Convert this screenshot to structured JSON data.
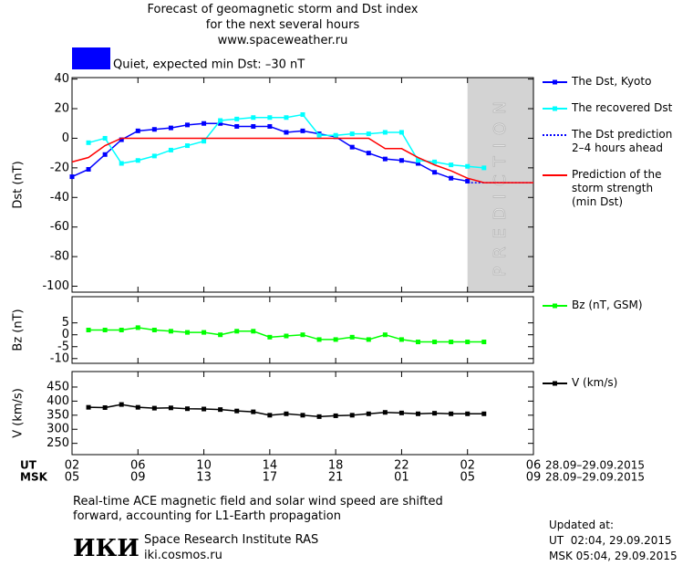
{
  "title": "Forecast of geomagnetic storm and Dst index",
  "subtitle": "for the next several hours",
  "url": "www.spaceweather.ru",
  "chart_data": [
    {
      "type": "line",
      "annotation": "Quiet, expected min Dst: –30 nT",
      "ylabel": "Dst (nT)",
      "xlim": [
        0,
        28
      ],
      "ylim": [
        -104,
        41
      ],
      "yticks": [
        40,
        20,
        0,
        -20,
        -40,
        -60,
        -80,
        -100
      ],
      "shade_x": [
        24,
        28
      ],
      "shade_label": "PREDICTION",
      "series": [
        {
          "name": "The Dst, Kyoto",
          "color": "#0000ff",
          "marker": true,
          "dash": "solid",
          "x": [
            0,
            1,
            2,
            3,
            4,
            5,
            6,
            7,
            8,
            9,
            10,
            11,
            12,
            13,
            14,
            15,
            16,
            17,
            18,
            19,
            20,
            21,
            22,
            23,
            24
          ],
          "values": [
            -26,
            -21,
            -11,
            -1,
            5,
            6,
            7,
            9,
            10,
            10,
            8,
            8,
            8,
            4,
            5,
            3,
            1,
            -6,
            -10,
            -14,
            -15,
            -17,
            -23,
            -27,
            -29
          ]
        },
        {
          "name": "The recovered Dst",
          "color": "#00ffff",
          "marker": true,
          "dash": "solid",
          "x": [
            1,
            2,
            3,
            4,
            5,
            6,
            7,
            8,
            9,
            10,
            11,
            12,
            13,
            14,
            15,
            16,
            17,
            18,
            19,
            20,
            21,
            22,
            23,
            24,
            25
          ],
          "values": [
            -3,
            0,
            -17,
            -15,
            -12,
            -8,
            -5,
            -2,
            12,
            13,
            14,
            14,
            14,
            16,
            2,
            2,
            3,
            3,
            4,
            4,
            -15,
            -16,
            -18,
            -19,
            -20
          ]
        },
        {
          "name": "The Dst prediction\n2–4 hours ahead",
          "color": "#0000ff",
          "marker": false,
          "dash": "dotted",
          "x": [
            24,
            28
          ],
          "values": [
            -30,
            -30
          ]
        },
        {
          "name": "Prediction of the\nstorm strength\n(min Dst)",
          "color": "#ff0000",
          "marker": false,
          "dash": "solid",
          "x": [
            0,
            1,
            2,
            3,
            18,
            19,
            20,
            21,
            22,
            23,
            24,
            25,
            28
          ],
          "values": [
            -16,
            -13,
            -5,
            0,
            0,
            -7,
            -7,
            -13,
            -18,
            -22,
            -27,
            -30,
            -30
          ]
        }
      ]
    },
    {
      "type": "line",
      "ylabel": "Bz (nT)",
      "xlim": [
        0,
        28
      ],
      "ylim": [
        -12,
        16
      ],
      "yticks": [
        5,
        0,
        -5,
        -10
      ],
      "series": [
        {
          "name": "Bz (nT, GSM)",
          "color": "#00ff00",
          "marker": true,
          "dash": "solid",
          "x": [
            1,
            2,
            3,
            4,
            5,
            6,
            7,
            8,
            9,
            10,
            11,
            12,
            13,
            14,
            15,
            16,
            17,
            18,
            19,
            20,
            21,
            22,
            23,
            24,
            25
          ],
          "values": [
            2,
            2,
            2,
            3,
            2,
            1.5,
            1,
            1,
            0,
            1.5,
            1.5,
            -1,
            -0.5,
            0,
            -2,
            -2,
            -1,
            -2,
            0,
            -2,
            -3,
            -3,
            -3,
            -3,
            -3
          ]
        }
      ]
    },
    {
      "type": "line",
      "ylabel": "V (km/s)",
      "xlim": [
        0,
        28
      ],
      "ylim": [
        210,
        505
      ],
      "yticks": [
        450,
        400,
        350,
        300,
        250
      ],
      "series": [
        {
          "name": "V (km/s)",
          "color": "#000000",
          "marker": true,
          "dash": "solid",
          "x": [
            1,
            2,
            3,
            4,
            5,
            6,
            7,
            8,
            9,
            10,
            11,
            12,
            13,
            14,
            15,
            16,
            17,
            18,
            19,
            20,
            21,
            22,
            23,
            24,
            25
          ],
          "values": [
            378,
            377,
            388,
            378,
            375,
            376,
            373,
            372,
            370,
            365,
            362,
            350,
            355,
            350,
            345,
            348,
            350,
            355,
            360,
            358,
            355,
            357,
            355,
            355,
            355
          ]
        }
      ]
    }
  ],
  "time_axis": {
    "ut_label": "UT",
    "msk_label": "MSK",
    "ut_ticks": [
      {
        "value": 0,
        "label": "02"
      },
      {
        "value": 4,
        "label": "06"
      },
      {
        "value": 8,
        "label": "10"
      },
      {
        "value": 12,
        "label": "14"
      },
      {
        "value": 16,
        "label": "18"
      },
      {
        "value": 20,
        "label": "22"
      },
      {
        "value": 24,
        "label": "02"
      },
      {
        "value": 28,
        "label": "06"
      }
    ],
    "msk_ticks": [
      {
        "value": 0,
        "label": "05"
      },
      {
        "value": 4,
        "label": "09"
      },
      {
        "value": 8,
        "label": "13"
      },
      {
        "value": 12,
        "label": "17"
      },
      {
        "value": 16,
        "label": "21"
      },
      {
        "value": 20,
        "label": "01"
      },
      {
        "value": 24,
        "label": "05"
      },
      {
        "value": 28,
        "label": "09"
      }
    ],
    "date_range": "28.09–29.09.2015"
  },
  "footer": {
    "note": "Real-time ACE magnetic field and solar wind speed are shifted\nforward, accounting for L1-Earth propagation",
    "logo": "ИКИ",
    "institute": "Space Research Institute RAS",
    "site": "iki.cosmos.ru",
    "updated_label": "Updated at:",
    "updated_ut": "UT  02:04, 29.09.2015",
    "updated_msk": "MSK 05:04, 29.09.2015"
  }
}
